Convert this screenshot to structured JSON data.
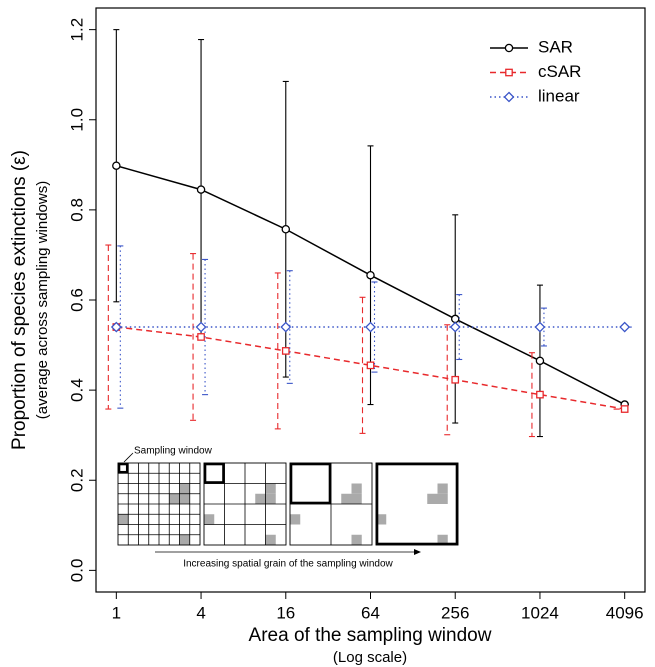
{
  "chart_data": {
    "type": "line",
    "x_label": "Area of the sampling window",
    "x_sublabel": "(Log scale)",
    "y_label": "Proportion of species extinctions (ε)",
    "y_sublabel": "(average across sampling windows)",
    "annotations": [
      "Sampling window",
      "Increasing spatial grain of the sampling window"
    ],
    "x": [
      1,
      4,
      16,
      64,
      256,
      1024,
      4096
    ],
    "xscale": "log",
    "xlim": [
      0.717,
      5712
    ],
    "xticks": [
      1,
      4,
      16,
      64,
      256,
      1024,
      4096
    ],
    "ylim": [
      -0.048,
      1.248
    ],
    "yticks": [
      {
        "value": 0,
        "label": "0.0"
      },
      {
        "value": 0.2,
        "label": "0.2"
      },
      {
        "value": 0.4,
        "label": "0.4"
      },
      {
        "value": 0.6,
        "label": "0.6"
      },
      {
        "value": 0.8,
        "label": "0.8"
      },
      {
        "value": 1,
        "label": "1.0"
      },
      {
        "value": 1.2,
        "label": "1.2"
      }
    ],
    "legend": "top right",
    "series": [
      {
        "name": "SAR",
        "color": "#000000",
        "linestyle": "solid",
        "marker": "circle",
        "values": [
          0.898,
          0.845,
          0.757,
          0.655,
          0.558,
          0.465,
          0.368
        ],
        "errors": [
          0.302,
          0.333,
          0.328,
          0.287,
          0.231,
          0.168,
          0
        ]
      },
      {
        "name": "cSAR",
        "color": "#e8292c",
        "linestyle": "dashed",
        "marker": "square",
        "values": [
          0.54,
          0.518,
          0.487,
          0.455,
          0.423,
          0.39,
          0.358
        ],
        "errors": [
          0.182,
          0.185,
          0.173,
          0.151,
          0.122,
          0.093,
          0
        ]
      },
      {
        "name": "linear",
        "color": "#3a55c8",
        "linestyle": "dotted",
        "marker": "diamond",
        "values": [
          0.54,
          0.54,
          0.54,
          0.54,
          0.54,
          0.54,
          0.54
        ],
        "errors": [
          0.18,
          0.15,
          0.125,
          0.1,
          0.072,
          0.042,
          0
        ]
      }
    ]
  }
}
